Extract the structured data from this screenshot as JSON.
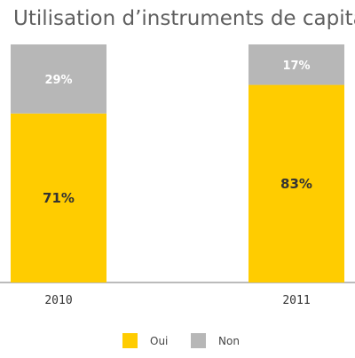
{
  "chart_data": {
    "type": "bar",
    "stacked": true,
    "percent_stacked": true,
    "title": "Utilisation d’instruments de capital",
    "categories": [
      "2010",
      "2011"
    ],
    "series": [
      {
        "name": "Oui",
        "values": [
          71,
          83
        ],
        "labels": [
          "71%",
          "83%"
        ],
        "color": "#ffcc00",
        "label_color": "#333333"
      },
      {
        "name": "Non",
        "values": [
          29,
          17
        ],
        "labels": [
          "29%",
          "17%"
        ],
        "color": "#b7b7b7",
        "label_color": "#ffffff"
      }
    ],
    "ylim": [
      0,
      100
    ],
    "grid": false,
    "legend_position": "bottom"
  }
}
